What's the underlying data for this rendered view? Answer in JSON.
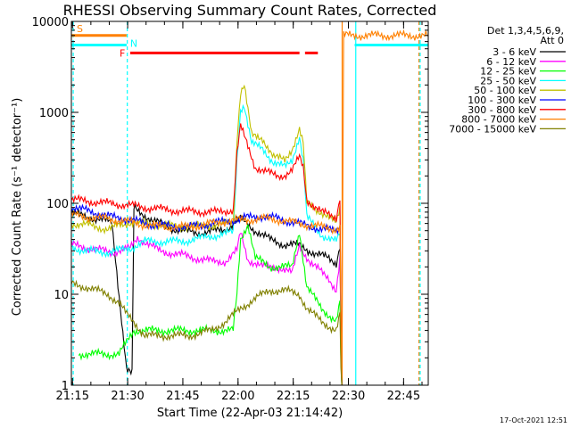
{
  "chart_data": {
    "type": "line",
    "title": "RHESSI Observing Summary Count Rates, Corrected",
    "xlabel": "Start Time (22-Apr-03 21:14:42)",
    "ylabel": "Corrected Count Rate (s⁻¹ detector⁻¹)",
    "x_unit": "minutes after 21:14:42",
    "xlim": [
      0,
      97
    ],
    "ylim": [
      1,
      10000
    ],
    "yscale": "log",
    "x_ticks": [
      {
        "t": 0.3,
        "label": "21:15"
      },
      {
        "t": 15.3,
        "label": "21:30"
      },
      {
        "t": 30.3,
        "label": "21:45"
      },
      {
        "t": 45.3,
        "label": "22:00"
      },
      {
        "t": 60.3,
        "label": "22:15"
      },
      {
        "t": 75.3,
        "label": "22:30"
      },
      {
        "t": 90.3,
        "label": "22:45"
      }
    ],
    "y_ticks": [
      {
        "v": 1,
        "label": "1"
      },
      {
        "v": 10,
        "label": "10"
      },
      {
        "v": 100,
        "label": "100"
      },
      {
        "v": 1000,
        "label": "1000"
      },
      {
        "v": 10000,
        "label": "10000"
      }
    ],
    "legend_header": [
      "Det 1,3,4,5,6,9,",
      "Att 0"
    ],
    "legend_placement": "right",
    "series": [
      {
        "name": "3 - 6 keV",
        "color": "#000000",
        "points": [
          [
            0,
            78
          ],
          [
            5,
            70
          ],
          [
            11,
            62
          ],
          [
            15,
            1.5
          ],
          [
            16.5,
            1.5
          ],
          [
            17,
            88
          ],
          [
            22,
            65
          ],
          [
            28,
            52
          ],
          [
            35,
            47
          ],
          [
            42,
            52
          ],
          [
            46,
            68
          ],
          [
            50,
            50
          ],
          [
            54,
            40
          ],
          [
            58,
            35
          ],
          [
            62,
            35
          ],
          [
            66,
            28
          ],
          [
            70,
            25
          ],
          [
            72,
            22
          ],
          [
            73,
            35
          ],
          [
            73.5,
            0.5
          ]
        ]
      },
      {
        "name": "6 - 12 keV",
        "color": "#ff00ff",
        "points": [
          [
            0,
            35
          ],
          [
            5,
            32
          ],
          [
            11,
            29
          ],
          [
            16,
            32
          ],
          [
            18,
            42
          ],
          [
            24,
            30
          ],
          [
            30,
            27
          ],
          [
            38,
            23
          ],
          [
            42,
            23
          ],
          [
            45,
            30
          ],
          [
            46,
            48
          ],
          [
            48,
            24
          ],
          [
            52,
            20
          ],
          [
            56,
            20
          ],
          [
            60,
            17
          ],
          [
            62,
            35
          ],
          [
            65,
            22
          ],
          [
            70,
            15
          ],
          [
            72,
            11
          ],
          [
            73,
            25
          ],
          [
            73.5,
            0.5
          ]
        ]
      },
      {
        "name": "12 - 25 keV",
        "color": "#00ff00",
        "points": [
          [
            2,
            2.2
          ],
          [
            4,
            2.2
          ],
          [
            8,
            2.2
          ],
          [
            11,
            2.2
          ],
          [
            13,
            2.2
          ],
          [
            17,
            4
          ],
          [
            20,
            4
          ],
          [
            26,
            4
          ],
          [
            32,
            4
          ],
          [
            40,
            4
          ],
          [
            44,
            4
          ],
          [
            45,
            10
          ],
          [
            46,
            40
          ],
          [
            48,
            60
          ],
          [
            50,
            25
          ],
          [
            54,
            20
          ],
          [
            58,
            20
          ],
          [
            60,
            20
          ],
          [
            62,
            50
          ],
          [
            64,
            12
          ],
          [
            68,
            7
          ],
          [
            72,
            5
          ],
          [
            73,
            8
          ],
          [
            73.5,
            0.5
          ]
        ]
      },
      {
        "name": "25 - 50 keV",
        "color": "#00ffff",
        "points": [
          [
            0,
            33
          ],
          [
            4,
            30
          ],
          [
            10,
            29
          ],
          [
            16,
            32
          ],
          [
            20,
            38
          ],
          [
            30,
            38
          ],
          [
            40,
            45
          ],
          [
            44,
            48
          ],
          [
            45,
            300
          ],
          [
            46,
            1100
          ],
          [
            47,
            1200
          ],
          [
            49,
            450
          ],
          [
            52,
            400
          ],
          [
            55,
            280
          ],
          [
            58,
            250
          ],
          [
            60,
            300
          ],
          [
            62,
            550
          ],
          [
            63,
            300
          ],
          [
            64,
            70
          ],
          [
            68,
            45
          ],
          [
            72,
            38
          ],
          [
            73,
            45
          ],
          [
            73.5,
            0.5
          ]
        ]
      },
      {
        "name": "50 - 100 keV",
        "color": "#c0c000",
        "points": [
          [
            0,
            60
          ],
          [
            4,
            58
          ],
          [
            10,
            52
          ],
          [
            16,
            62
          ],
          [
            20,
            60
          ],
          [
            30,
            55
          ],
          [
            40,
            58
          ],
          [
            44,
            62
          ],
          [
            45,
            500
          ],
          [
            46,
            1700
          ],
          [
            47,
            2000
          ],
          [
            49,
            550
          ],
          [
            52,
            520
          ],
          [
            55,
            320
          ],
          [
            58,
            300
          ],
          [
            60,
            400
          ],
          [
            62,
            650
          ],
          [
            63,
            450
          ],
          [
            64,
            100
          ],
          [
            68,
            80
          ],
          [
            72,
            60
          ],
          [
            73,
            90
          ],
          [
            73.5,
            0.5
          ]
        ]
      },
      {
        "name": "100 - 300 keV",
        "color": "#0000ff",
        "points": [
          [
            0,
            90
          ],
          [
            5,
            82
          ],
          [
            10,
            72
          ],
          [
            16,
            66
          ],
          [
            20,
            60
          ],
          [
            26,
            56
          ],
          [
            32,
            55
          ],
          [
            38,
            60
          ],
          [
            44,
            65
          ],
          [
            48,
            70
          ],
          [
            52,
            72
          ],
          [
            56,
            68
          ],
          [
            60,
            62
          ],
          [
            64,
            57
          ],
          [
            68,
            52
          ],
          [
            72,
            50
          ],
          [
            73,
            55
          ],
          [
            73.5,
            0.5
          ]
        ]
      },
      {
        "name": "300 - 800 keV",
        "color": "#ff0000",
        "points": [
          [
            0,
            110
          ],
          [
            5,
            105
          ],
          [
            10,
            100
          ],
          [
            16,
            95
          ],
          [
            20,
            90
          ],
          [
            30,
            82
          ],
          [
            40,
            80
          ],
          [
            44,
            85
          ],
          [
            45,
            350
          ],
          [
            46,
            700
          ],
          [
            48,
            420
          ],
          [
            50,
            250
          ],
          [
            53,
            220
          ],
          [
            56,
            200
          ],
          [
            58,
            205
          ],
          [
            60,
            230
          ],
          [
            62,
            320
          ],
          [
            63,
            250
          ],
          [
            64,
            110
          ],
          [
            68,
            80
          ],
          [
            72,
            70
          ],
          [
            73,
            120
          ],
          [
            73.5,
            0.5
          ]
        ]
      },
      {
        "name": "800 - 7000 keV",
        "color": "#ff8000",
        "points": [
          [
            0,
            75
          ],
          [
            5,
            70
          ],
          [
            10,
            68
          ],
          [
            16,
            62
          ],
          [
            20,
            58
          ],
          [
            26,
            55
          ],
          [
            32,
            55
          ],
          [
            38,
            60
          ],
          [
            44,
            65
          ],
          [
            48,
            66
          ],
          [
            52,
            68
          ],
          [
            56,
            66
          ],
          [
            60,
            62
          ],
          [
            64,
            58
          ],
          [
            68,
            55
          ],
          [
            72,
            52
          ],
          [
            73,
            55
          ],
          [
            73.5,
            0.5
          ],
          [
            74,
            7000
          ],
          [
            97,
            7000
          ]
        ]
      },
      {
        "name": "7000 - 15000 keV",
        "color": "#808000",
        "points": [
          [
            0,
            13
          ],
          [
            4,
            12
          ],
          [
            10,
            10
          ],
          [
            13,
            8
          ],
          [
            15,
            6
          ],
          [
            17,
            5
          ],
          [
            20,
            3.5
          ],
          [
            26,
            3.5
          ],
          [
            32,
            3.5
          ],
          [
            38,
            4
          ],
          [
            42,
            5
          ],
          [
            46,
            7
          ],
          [
            50,
            9
          ],
          [
            54,
            11
          ],
          [
            58,
            11
          ],
          [
            62,
            10
          ],
          [
            64,
            7
          ],
          [
            68,
            5
          ],
          [
            72,
            4
          ],
          [
            73,
            6
          ],
          [
            73.5,
            0.5
          ]
        ]
      }
    ],
    "flag_bars": [
      {
        "label": "S",
        "color": "#ff8000",
        "y": 7000,
        "x_start": 0,
        "x_end": 15
      },
      {
        "label": "N",
        "color": "#00ffff",
        "y": 5500,
        "x_start": 0,
        "x_end": 15
      },
      {
        "label": "N",
        "color": "#00ffff",
        "y": 5500,
        "x_start": 77,
        "x_end": 97
      },
      {
        "label": "F",
        "color": "#ff0000",
        "y": 4500,
        "x_start": 16,
        "x_end": 67
      }
    ],
    "vertical_lines": [
      {
        "t": 0.5,
        "color": "#00ffff",
        "style": "dashed"
      },
      {
        "t": 15.2,
        "color": "#00ffff",
        "style": "dashed"
      },
      {
        "t": 73.6,
        "color": "#ff8000",
        "style": "solid"
      },
      {
        "t": 77.3,
        "color": "#00ffff",
        "style": "solid"
      },
      {
        "t": 94.5,
        "color": "#ff8000",
        "style": "dashed"
      },
      {
        "t": 94.8,
        "color": "#00ffff",
        "style": "dashed"
      }
    ],
    "footer_date": "17-Oct-2021 12:51"
  }
}
